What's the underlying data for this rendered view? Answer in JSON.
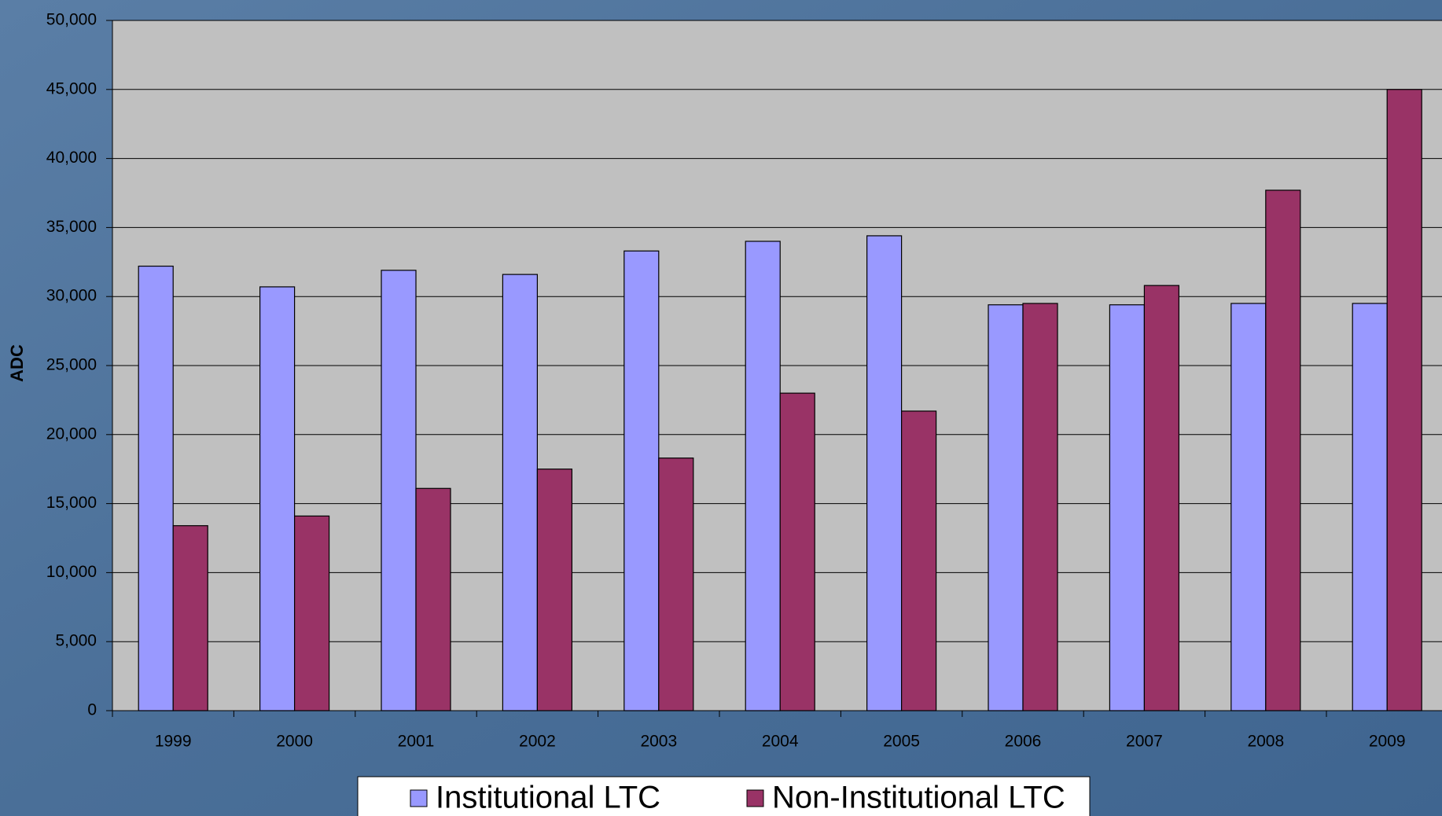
{
  "chart_data": {
    "type": "bar",
    "y_axis_label": "ADC",
    "categories": [
      "1999",
      "2000",
      "2001",
      "2002",
      "2003",
      "2004",
      "2005",
      "2006",
      "2007",
      "2008",
      "2009"
    ],
    "series": [
      {
        "name": "Institutional LTC",
        "color": "#9999ff",
        "values": [
          32200,
          30700,
          31900,
          31600,
          33300,
          34000,
          34400,
          29400,
          29400,
          29500,
          29500
        ]
      },
      {
        "name": "Non-Institutional LTC",
        "color": "#993366",
        "values": [
          13400,
          14100,
          16100,
          17500,
          18300,
          23000,
          21700,
          29500,
          30800,
          37700,
          45000
        ]
      }
    ],
    "ylim": [
      0,
      50000
    ],
    "yticks": [
      0,
      {
        "value": 5000,
        "label": "5,000"
      },
      {
        "value": 10000,
        "label": "10,000"
      },
      {
        "value": 15000,
        "label": "15,000"
      },
      {
        "value": 20000,
        "label": "20,000"
      },
      {
        "value": 25000,
        "label": "25,000"
      },
      {
        "value": 30000,
        "label": "30,000"
      },
      {
        "value": 35000,
        "label": "35,000"
      },
      {
        "value": 40000,
        "label": "40,000"
      },
      {
        "value": 45000,
        "label": "45,000"
      },
      {
        "value": 50000,
        "label": "50,000"
      }
    ],
    "grid": true,
    "legend": "bottom"
  }
}
